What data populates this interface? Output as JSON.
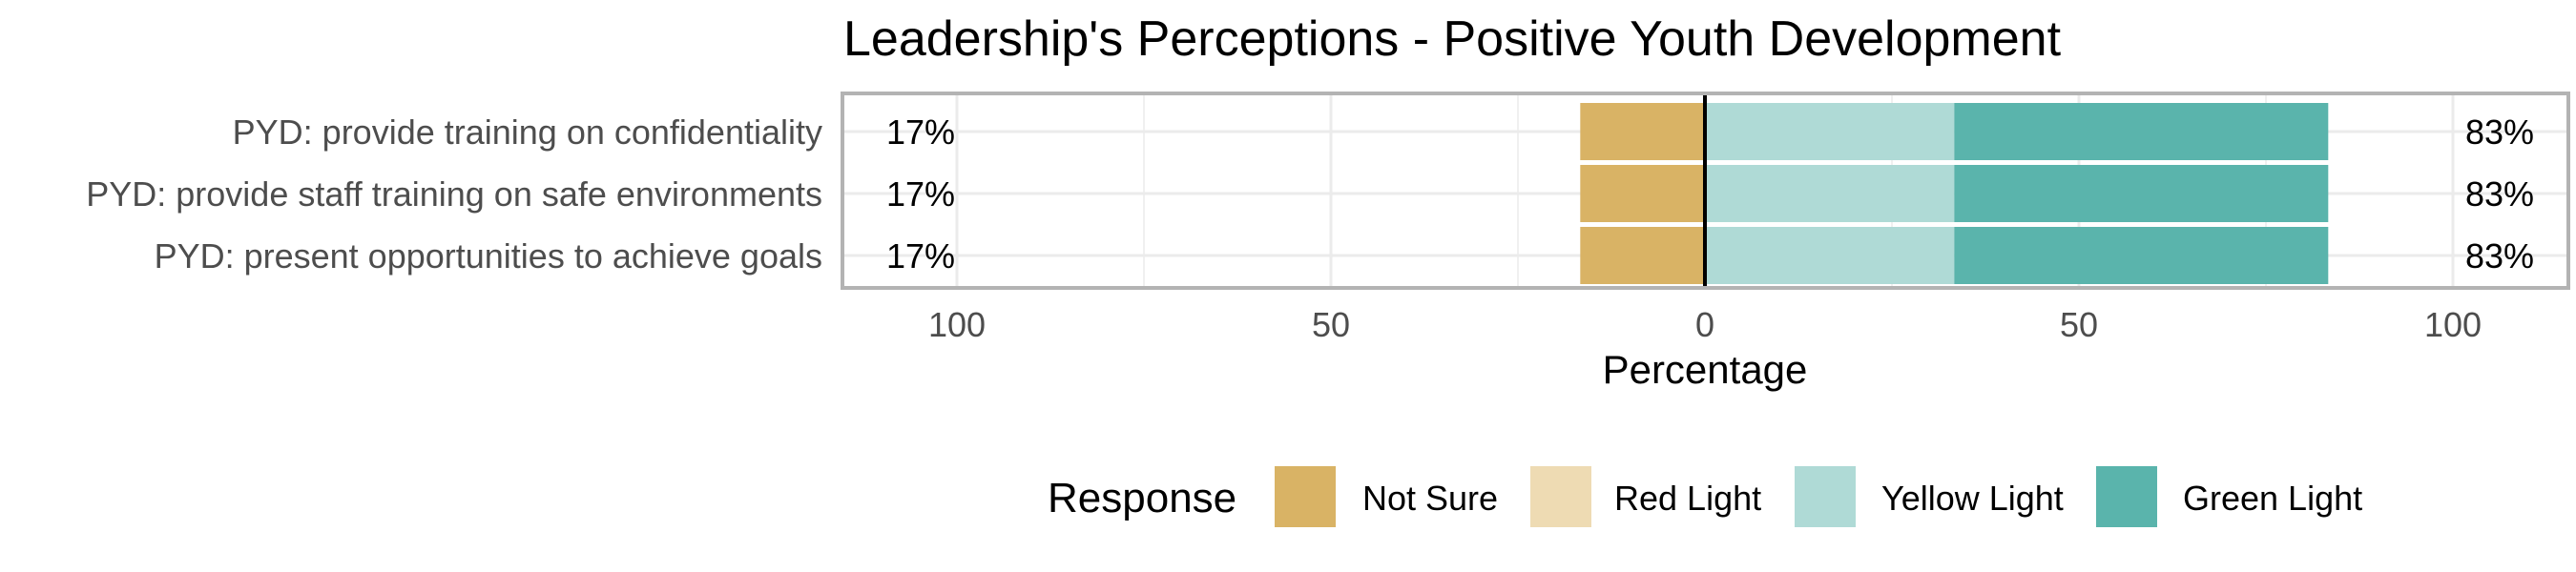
{
  "chart_data": {
    "type": "bar",
    "subtype": "diverging-stacked",
    "title": "Leadership's Perceptions - Positive Youth Development",
    "xlabel": "Percentage",
    "ylabel": "",
    "xlim": [
      -100,
      100
    ],
    "x_ticks": [
      {
        "value": -100,
        "label": "100"
      },
      {
        "value": -50,
        "label": "50"
      },
      {
        "value": 0,
        "label": "0"
      },
      {
        "value": 50,
        "label": "50"
      },
      {
        "value": 100,
        "label": "100"
      }
    ],
    "grid": true,
    "legend": {
      "title": "Response",
      "position": "bottom"
    },
    "categories": [
      "PYD: provide training on confidentiality",
      "PYD: provide staff training on safe environments",
      "PYD: present opportunities to achieve goals"
    ],
    "series": [
      {
        "name": "Not Sure",
        "color": "#D9B365",
        "values": [
          16.67,
          16.67,
          16.67
        ],
        "side": "negative"
      },
      {
        "name": "Red Light",
        "color": "#EEDBB3",
        "values": [
          0,
          0,
          0
        ],
        "side": "negative"
      },
      {
        "name": "Yellow Light",
        "color": "#AFDAD6",
        "values": [
          33.33,
          33.33,
          33.33
        ],
        "side": "positive"
      },
      {
        "name": "Green Light",
        "color": "#5AB4AC",
        "values": [
          50,
          50,
          50
        ],
        "side": "positive"
      }
    ],
    "left_labels": [
      "17%",
      "17%",
      "17%"
    ],
    "right_labels": [
      "83%",
      "83%",
      "83%"
    ]
  }
}
